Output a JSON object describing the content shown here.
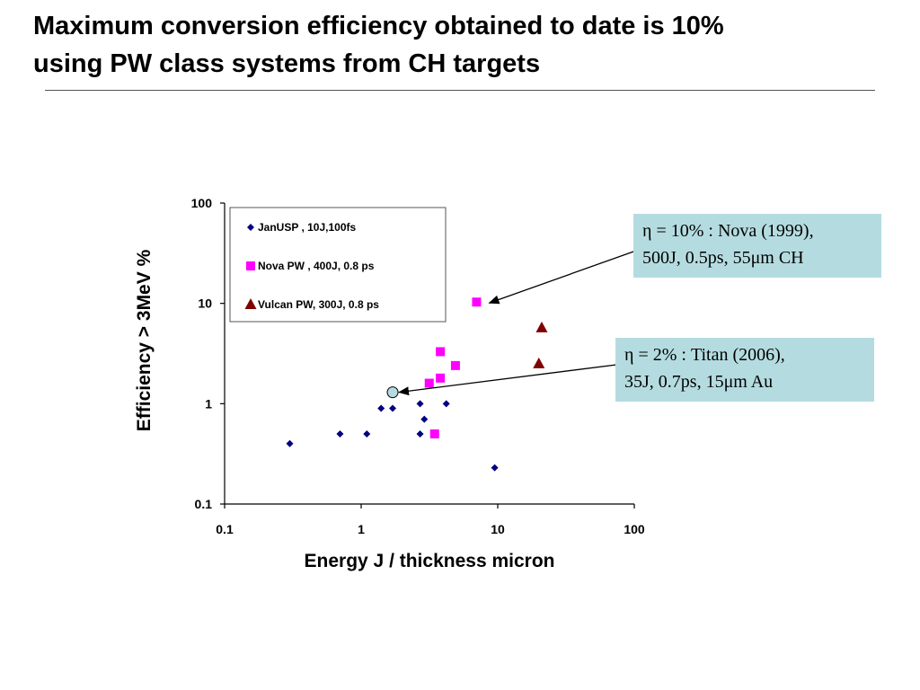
{
  "slide": {
    "title_line1": "Maximum conversion efficiency obtained to date is 10%",
    "title_line2": "using PW class systems from CH targets"
  },
  "callouts": [
    {
      "line1": "η = 10% : Nova (1999),",
      "line2": "500J, 0.5ps, 55μm CH"
    },
    {
      "line1": "η = 2% : Titan  (2006),",
      "line2": "35J, 0.7ps, 15μm Au"
    }
  ],
  "chart_data": {
    "type": "scatter",
    "title": "",
    "xlabel": "Energy J / thickness micron",
    "ylabel": "Efficiency > 3MeV %",
    "xscale": "log",
    "yscale": "log",
    "xlim": [
      0.1,
      100
    ],
    "ylim": [
      0.1,
      100
    ],
    "x_ticks": [
      "0.1",
      "1",
      "10",
      "100"
    ],
    "y_ticks": [
      "0.1",
      "1",
      "10",
      "100"
    ],
    "grid": false,
    "legend_position": "top-left",
    "series": [
      {
        "name": "JanUSP , 10J,100fs",
        "marker": "diamond",
        "color": "#000080",
        "points": [
          [
            0.3,
            0.4
          ],
          [
            0.7,
            0.5
          ],
          [
            1.1,
            0.5
          ],
          [
            1.4,
            0.9
          ],
          [
            1.7,
            0.9
          ],
          [
            2.7,
            1.0
          ],
          [
            2.9,
            0.7
          ],
          [
            2.7,
            0.5
          ],
          [
            4.2,
            1.0
          ],
          [
            9.5,
            0.23
          ]
        ]
      },
      {
        "name": "Nova PW , 400J, 0.8 ps",
        "marker": "square",
        "color": "#ff00ff",
        "points": [
          [
            7.0,
            10.3
          ],
          [
            3.8,
            3.3
          ],
          [
            3.8,
            1.8
          ],
          [
            4.9,
            2.4
          ],
          [
            3.15,
            1.6
          ],
          [
            3.45,
            0.5
          ]
        ]
      },
      {
        "name": "Vulcan PW, 300J, 0.8 ps",
        "marker": "triangle",
        "color": "#800000",
        "points": [
          [
            21.0,
            5.7
          ],
          [
            20.0,
            2.5
          ]
        ]
      }
    ],
    "annotations": [
      {
        "marker": "circle",
        "color": "#b4dce0",
        "point": [
          1.7,
          1.3
        ],
        "refers_to": "Titan"
      }
    ]
  }
}
